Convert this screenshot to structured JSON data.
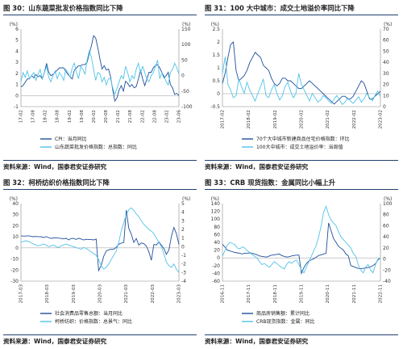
{
  "figures": [
    {
      "title": "图 30：山东蔬菜批发价格指数同比下降",
      "source": "资料来源：Wind，国泰君安证券研究"
    },
    {
      "title": "图 31：100 大中城市：成交土地溢价率同比下降",
      "source": "资料来源：Wind，国泰君安证券研究"
    },
    {
      "title": "图 32：柯桥纺织价格指数同比下降",
      "source": "资料来源：Wind，国泰君安证券研究"
    },
    {
      "title": "图 33：CRB 现货指数：金属同比小幅上升",
      "source": "资料来源：Wind，国泰君安证券研究"
    }
  ],
  "colors": {
    "dark": "#1f4e9a",
    "light": "#4fc3e8",
    "rule": "#1f3f6e"
  },
  "chart_data": [
    {
      "type": "line",
      "title": "",
      "left_axis": {
        "unit": "(%)",
        "ticks": [
          -1,
          0,
          1,
          2,
          3,
          4,
          5,
          6
        ],
        "range": [
          -1,
          6
        ]
      },
      "right_axis": {
        "unit": "(%)",
        "ticks": [
          -100,
          -50,
          0,
          50,
          100,
          150
        ],
        "range": [
          -100,
          150
        ]
      },
      "x_ticks": [
        "17-02",
        "17-08",
        "18-02",
        "18-08",
        "19-02",
        "19-08",
        "20-02",
        "20-08",
        "21-02",
        "21-08",
        "22-02",
        "22-08",
        "23-02",
        "23-06"
      ],
      "series": [
        {
          "name": "CPI：当月同比",
          "axis": "left",
          "values": [
            0.8,
            0.9,
            1.2,
            1.5,
            1.5,
            1.8,
            1.6,
            1.9,
            1.7,
            1.8,
            1.5,
            2.1,
            2.9,
            2.1,
            1.8,
            1.9,
            2.1,
            2.3,
            2.5,
            2.5,
            2.5,
            2.2,
            1.9,
            1.7,
            1.5,
            2.3,
            2.5,
            2.7,
            2.7,
            2.8,
            2.8,
            3.0,
            3.8,
            4.5,
            5.4,
            5.2,
            4.3,
            3.3,
            2.4,
            2.7,
            2.3,
            2.4,
            1.7,
            0.5,
            -0.5,
            -0.2,
            0.5,
            0.9,
            0.4,
            1.3,
            1.1,
            0.8,
            1.0,
            0.7,
            0.8,
            1.5,
            2.3,
            1.5,
            0.9,
            1.5,
            2.1,
            2.1,
            2.5,
            2.7,
            2.8,
            2.5,
            2.1,
            1.6,
            1.8,
            2.1,
            1.0,
            0.7,
            0.1,
            0.2,
            0.0
          ]
        },
        {
          "name": "山东蔬菜批发价格指数：总指数：同比",
          "axis": "right",
          "values": [
            -20,
            10,
            -5,
            15,
            -10,
            0,
            10,
            -15,
            5,
            20,
            -10,
            10,
            30,
            -5,
            -20,
            0,
            15,
            -10,
            10,
            0,
            -15,
            20,
            10,
            -5,
            25,
            40,
            10,
            -10,
            30,
            20,
            5,
            50,
            80,
            60,
            20,
            -15,
            10,
            5,
            -20,
            -5,
            -30,
            -10,
            -10,
            -40,
            -60,
            -40,
            -20,
            0,
            -10,
            30,
            10,
            -20,
            0,
            -10,
            20,
            40,
            10,
            30,
            10,
            -10,
            -20,
            0,
            10,
            30,
            50,
            -10,
            10,
            0,
            -20,
            -30,
            10,
            20,
            40,
            25,
            5
          ]
        }
      ]
    },
    {
      "type": "line",
      "title": "",
      "left_axis": {
        "unit": "(%)",
        "ticks": [
          -0.5,
          0,
          0.5,
          1,
          1.5,
          2,
          2.5
        ],
        "range": [
          -0.5,
          2.5
        ]
      },
      "right_axis": {
        "unit": "(%)",
        "ticks": [
          0,
          10,
          20,
          30,
          40,
          50,
          60,
          70
        ],
        "range": [
          0,
          70
        ]
      },
      "x_ticks": [
        "2017-02",
        "2018-02",
        "2019-02",
        "2020-02",
        "2021-02",
        "2022-02",
        "2023-02"
      ],
      "series": [
        {
          "name": "70个大中城市新建商品住宅价格指数：环比",
          "axis": "left",
          "values": [
            0.4,
            0.8,
            1.4,
            1.9,
            2.0,
            0.9,
            0.5,
            0.6,
            0.7,
            0.9,
            1.2,
            1.4,
            1.6,
            1.5,
            1.4,
            1.1,
            1.0,
            0.9,
            0.6,
            0.4,
            0.3,
            0.4,
            0.6,
            0.6,
            0.5,
            0.5,
            0.4,
            0.3,
            0.2,
            0.2,
            0.3,
            0.4,
            0.5,
            0.4,
            0.3,
            0.2,
            0.1,
            0.0,
            -0.1,
            -0.2,
            -0.3,
            -0.4,
            -0.3,
            -0.2,
            -0.1,
            -0.1,
            -0.2,
            -0.2,
            -0.1,
            0.1,
            0.3,
            0.5,
            0.4,
            0.1,
            -0.2,
            -0.2,
            -0.1,
            0.0,
            0.1
          ]
        },
        {
          "name": "100大中城市：成交土地溢价率：当周值",
          "axis": "right",
          "values": [
            30,
            45,
            20,
            15,
            8,
            10,
            25,
            18,
            12,
            22,
            15,
            10,
            5,
            12,
            18,
            25,
            10,
            8,
            15,
            20,
            12,
            6,
            10,
            18,
            22,
            14,
            8,
            12,
            30,
            20,
            15,
            10,
            5,
            12,
            8,
            4,
            6,
            10,
            8,
            5,
            3,
            7,
            10,
            6,
            2,
            4,
            8,
            5,
            3,
            6,
            9,
            4,
            7,
            12,
            8,
            5,
            10,
            14,
            9
          ]
        }
      ]
    },
    {
      "type": "line",
      "title": "",
      "left_axis": {
        "unit": "(%)",
        "ticks": [
          -30,
          -20,
          -10,
          0,
          10,
          20,
          30,
          40
        ],
        "range": [
          -30,
          40
        ]
      },
      "right_axis": {
        "unit": "(%)",
        "ticks": [
          -4,
          -3,
          -2,
          -1,
          0,
          1,
          2,
          3,
          4,
          5
        ],
        "range": [
          -4,
          5
        ]
      },
      "x_ticks": [
        "2017-03",
        "2018-03",
        "2019-03",
        "2020-03",
        "2021-03",
        "2022-03",
        "2023-03"
      ],
      "series": [
        {
          "name": "社会消费品零售总额：当月同比",
          "axis": "left",
          "values": [
            10.9,
            10.7,
            10.7,
            11.0,
            10.4,
            10.1,
            10.3,
            10.0,
            10.2,
            9.4,
            10.1,
            9.4,
            8.5,
            9.0,
            9.2,
            8.8,
            8.6,
            8.1,
            8.7,
            7.2,
            8.5,
            8.6,
            7.6,
            8.7,
            8.0,
            7.2,
            7.8,
            7.5,
            7.5,
            7.2,
            8.0,
            -20.5,
            -15.8,
            -7.5,
            -2.8,
            -1.8,
            -1.1,
            -1.1,
            0.5,
            3.3,
            4.3,
            5.0,
            34.2,
            17.7,
            12.4,
            4.9,
            8.5,
            2.5,
            4.4,
            3.9,
            1.7,
            -3.5,
            -11.1,
            3.1,
            2.7,
            5.4,
            2.5,
            -0.5,
            -5.9,
            -1.8,
            10.6,
            18.4,
            12.7,
            3.1
          ]
        },
        {
          "name": "柯桥纺织：价格指数：总景气：同比",
          "axis": "right",
          "values": [
            0.5,
            0.6,
            0.7,
            0.6,
            0.5,
            0.3,
            0.2,
            0.1,
            0.2,
            0.3,
            0.2,
            0.0,
            0.1,
            0.2,
            0.0,
            -0.1,
            0.1,
            0.2,
            0.3,
            0.2,
            0.1,
            0.0,
            -0.1,
            -0.2,
            -0.3,
            -0.1,
            -0.2,
            -0.4,
            -0.6,
            -0.8,
            -1.0,
            -1.5,
            -2.2,
            -2.6,
            -2.4,
            -2.0,
            -1.5,
            -1.0,
            -0.5,
            0.5,
            1.8,
            2.8,
            3.7,
            4.3,
            4.5,
            4.2,
            3.8,
            3.5,
            3.0,
            2.6,
            2.3,
            2.0,
            1.8,
            1.5,
            1.0,
            0.5,
            0.0,
            -0.8,
            -1.8,
            -2.2,
            -2.4,
            -2.0,
            -2.6,
            -3.0
          ]
        }
      ]
    },
    {
      "type": "line",
      "title": "",
      "left_axis": {
        "unit": "(%)",
        "ticks": [
          -60,
          -40,
          -20,
          0,
          20,
          40,
          60,
          80,
          100,
          120,
          140
        ],
        "range": [
          -60,
          140
        ]
      },
      "right_axis": {
        "unit": "(%)",
        "ticks": [
          -40,
          -20,
          0,
          20,
          40,
          60,
          80,
          100
        ],
        "range": [
          -40,
          100
        ]
      },
      "x_ticks": [
        "2016-11",
        "2017-11",
        "2018-11",
        "2019-11",
        "2020-11",
        "2021-11",
        "2022-11"
      ],
      "series": [
        {
          "name": "商品房销售额：累计同比",
          "axis": "left",
          "values": [
            35,
            28,
            20,
            18,
            16,
            14,
            13,
            12,
            10,
            12,
            12,
            13,
            12,
            10,
            8,
            5,
            4,
            3,
            2,
            5,
            7,
            8,
            9,
            10,
            6,
            4,
            2,
            3,
            5,
            6,
            7,
            7,
            -40,
            -25,
            -15,
            -8,
            -5,
            -2,
            2,
            6,
            8,
            10,
            12,
            90,
            70,
            50,
            40,
            30,
            25,
            20,
            10,
            5,
            -20,
            -22,
            -25,
            -27,
            -28,
            -27,
            -26,
            -25,
            -23,
            -20,
            -15,
            -5,
            0
          ]
        },
        {
          "name": "CRB现货指数：金属：同比",
          "axis": "right",
          "values": [
            5,
            15,
            25,
            30,
            28,
            26,
            20,
            18,
            22,
            20,
            15,
            12,
            8,
            5,
            2,
            -5,
            -10,
            -8,
            -12,
            -15,
            -10,
            -5,
            -8,
            -12,
            -15,
            -18,
            -10,
            -5,
            -8,
            -4,
            -2,
            -10,
            -20,
            -25,
            -15,
            -5,
            5,
            15,
            25,
            40,
            60,
            85,
            95,
            80,
            70,
            65,
            60,
            50,
            40,
            35,
            30,
            25,
            20,
            10,
            5,
            -10,
            -20,
            -25,
            -15,
            -10,
            -20,
            -25,
            -10,
            0,
            2
          ]
        }
      ]
    }
  ]
}
